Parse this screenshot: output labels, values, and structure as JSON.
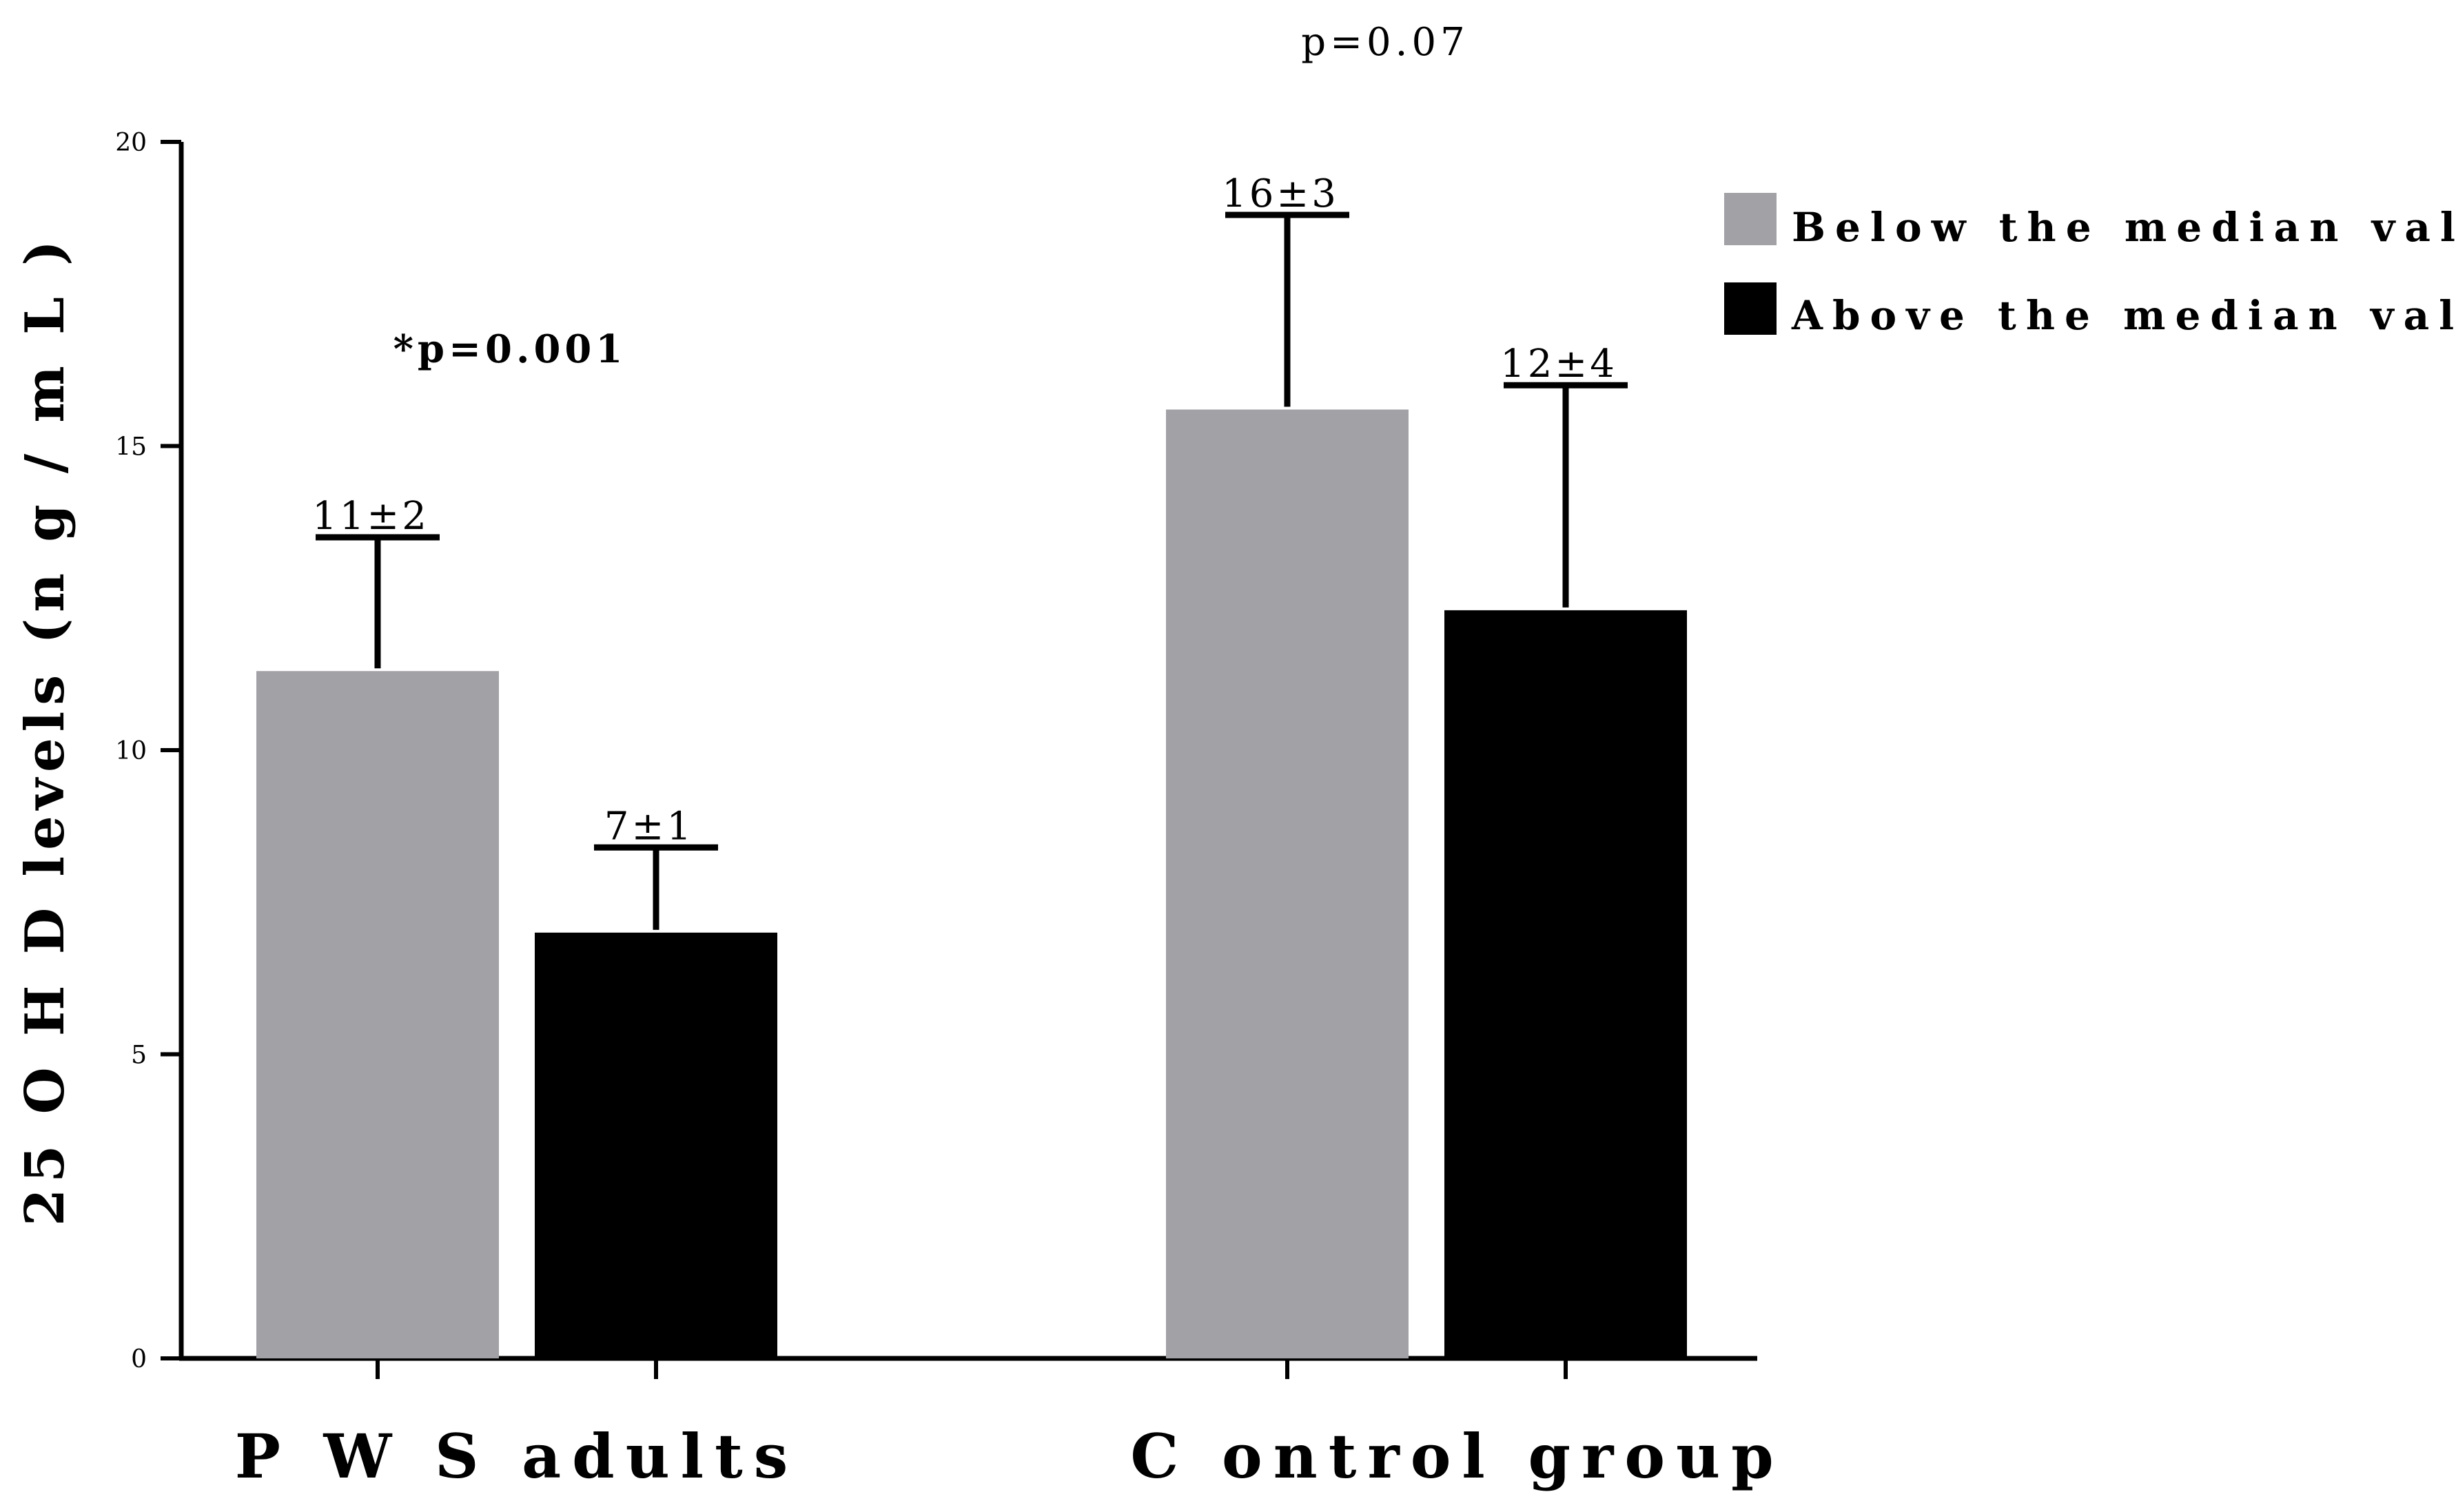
{
  "chart_data": {
    "type": "bar",
    "title": "",
    "xlabel": "",
    "ylabel": "25OHD levels (ng/mL)",
    "ylabel_display": "25 O H D  levels (n g / m L )",
    "ylim": [
      0,
      20
    ],
    "yticks": [
      0,
      5,
      10,
      15,
      20
    ],
    "grid": false,
    "categories": [
      "PWS adults",
      "Control group"
    ],
    "categories_display": [
      "P W S  adults",
      "C ontrol group"
    ],
    "series": [
      {
        "name": "Below the median value",
        "color": "#a2a1a6",
        "values": [
          11.3,
          15.6
        ],
        "error_upper": [
          2.2,
          3.2
        ],
        "labels": [
          "11±2",
          "16±3"
        ]
      },
      {
        "name": "Above the median value",
        "color": "#000000",
        "values": [
          7.0,
          12.3
        ],
        "error_upper": [
          1.4,
          3.7
        ],
        "labels": [
          "7±1",
          "12±4"
        ]
      }
    ],
    "group_annotations": [
      "*p=0.001",
      "p=0.07"
    ],
    "legend_placement": "top-right"
  }
}
